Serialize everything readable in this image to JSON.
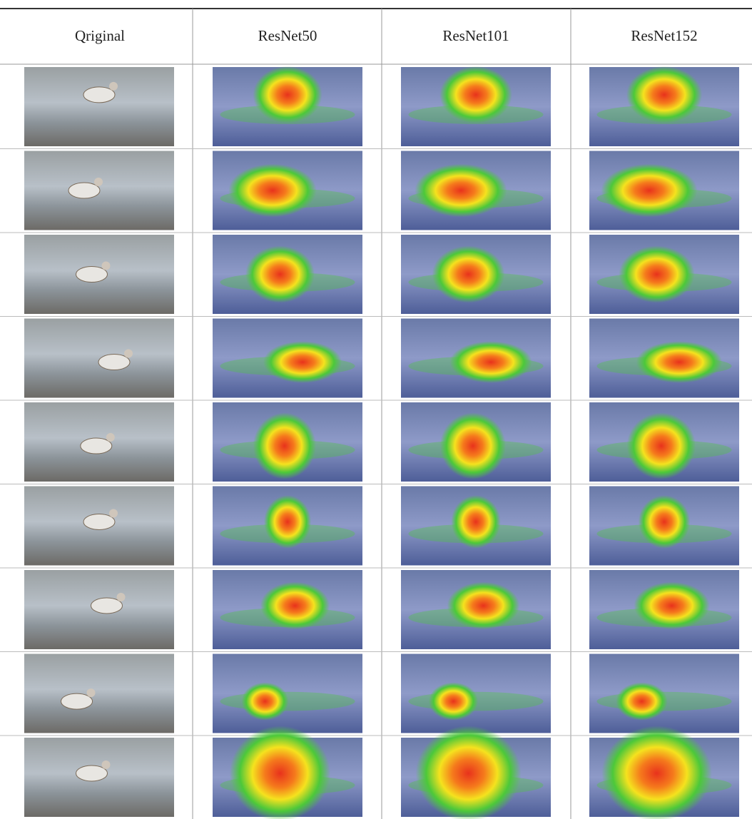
{
  "table": {
    "headers": [
      "Qriginal",
      "ResNet50",
      "ResNet101",
      "ResNet152"
    ]
  }
}
